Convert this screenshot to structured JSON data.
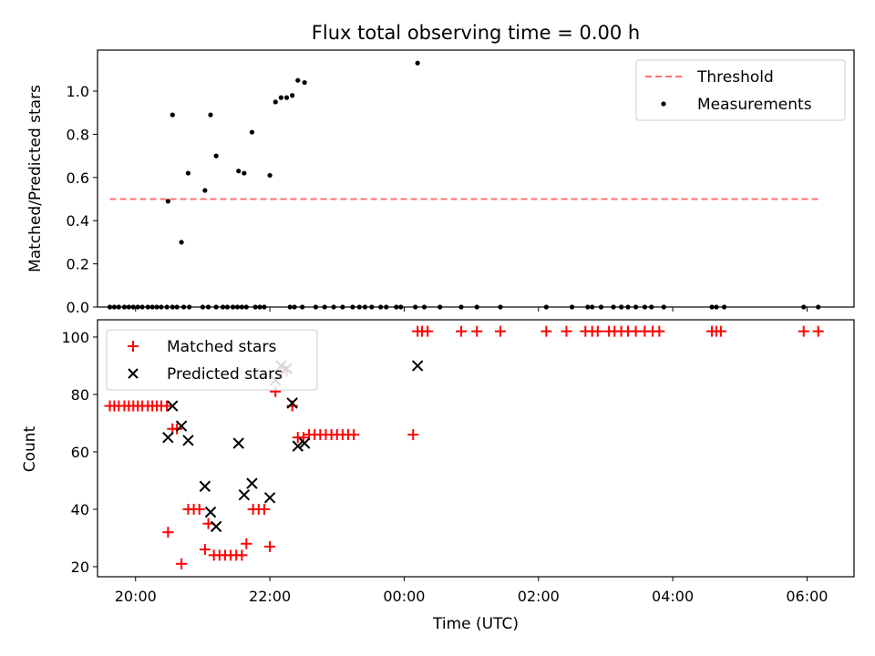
{
  "title": "Flux total observing time = 0.00 h",
  "colors": {
    "threshold": "#ff7070",
    "measurement": "#000000",
    "matched": "#ff0000",
    "predicted": "#000000"
  },
  "chart_data": [
    {
      "type": "scatter",
      "ylabel": "Matched/Predicted stars",
      "xlim": [
        "19:26",
        "06:42"
      ],
      "ylim": [
        0,
        1.19
      ],
      "yticks": [
        0.0,
        0.2,
        0.4,
        0.6,
        0.8,
        1.0
      ],
      "ytick_labels": [
        "0.0",
        "0.2",
        "0.4",
        "0.6",
        "0.8",
        "1.0"
      ],
      "legend": {
        "placement": "top-right",
        "entries": [
          "Threshold",
          "Measurements"
        ]
      },
      "threshold": {
        "name": "Threshold",
        "y": 0.5,
        "x_range": [
          "19:37",
          "06:10"
        ]
      },
      "series": [
        {
          "name": "Measurements",
          "points": [
            [
              "19:37",
              0
            ],
            [
              "19:41",
              0
            ],
            [
              "19:45",
              0
            ],
            [
              "19:50",
              0
            ],
            [
              "19:54",
              0
            ],
            [
              "19:58",
              0
            ],
            [
              "20:02",
              0
            ],
            [
              "20:06",
              0
            ],
            [
              "20:11",
              0
            ],
            [
              "20:15",
              0
            ],
            [
              "20:19",
              0
            ],
            [
              "20:23",
              0
            ],
            [
              "20:28",
              0
            ],
            [
              "20:33",
              0
            ],
            [
              "20:37",
              0
            ],
            [
              "20:43",
              0
            ],
            [
              "20:48",
              0
            ],
            [
              "21:00",
              0
            ],
            [
              "21:05",
              0
            ],
            [
              "21:12",
              0
            ],
            [
              "21:18",
              0
            ],
            [
              "21:22",
              0
            ],
            [
              "21:27",
              0
            ],
            [
              "21:31",
              0
            ],
            [
              "21:35",
              0
            ],
            [
              "21:39",
              0
            ],
            [
              "21:47",
              0
            ],
            [
              "21:51",
              0
            ],
            [
              "21:55",
              0
            ],
            [
              "22:18",
              0
            ],
            [
              "22:22",
              0
            ],
            [
              "22:29",
              0
            ],
            [
              "22:41",
              0
            ],
            [
              "22:49",
              0
            ],
            [
              "22:57",
              0
            ],
            [
              "23:05",
              0
            ],
            [
              "23:14",
              0
            ],
            [
              "23:20",
              0
            ],
            [
              "23:25",
              0
            ],
            [
              "23:31",
              0
            ],
            [
              "23:39",
              0
            ],
            [
              "23:44",
              0
            ],
            [
              "23:53",
              0
            ],
            [
              "23:57",
              0
            ],
            [
              "00:10",
              0
            ],
            [
              "00:18",
              0
            ],
            [
              "00:32",
              0
            ],
            [
              "00:51",
              0
            ],
            [
              "01:05",
              0
            ],
            [
              "01:26",
              0
            ],
            [
              "02:07",
              0
            ],
            [
              "02:30",
              0
            ],
            [
              "02:44",
              0
            ],
            [
              "02:48",
              0
            ],
            [
              "02:56",
              0
            ],
            [
              "03:07",
              0
            ],
            [
              "03:14",
              0
            ],
            [
              "03:20",
              0
            ],
            [
              "03:27",
              0
            ],
            [
              "03:35",
              0
            ],
            [
              "03:41",
              0
            ],
            [
              "03:52",
              0
            ],
            [
              "04:35",
              0
            ],
            [
              "04:39",
              0
            ],
            [
              "04:46",
              0
            ],
            [
              "05:57",
              0
            ],
            [
              "06:10",
              0
            ],
            [
              "20:29",
              0.49
            ],
            [
              "20:33",
              0.89
            ],
            [
              "20:41",
              0.3
            ],
            [
              "20:47",
              0.62
            ],
            [
              "21:02",
              0.54
            ],
            [
              "21:07",
              0.89
            ],
            [
              "21:12",
              0.7
            ],
            [
              "21:32",
              0.63
            ],
            [
              "21:37",
              0.62
            ],
            [
              "21:44",
              0.81
            ],
            [
              "22:00",
              0.61
            ],
            [
              "22:05",
              0.95
            ],
            [
              "22:10",
              0.97
            ],
            [
              "22:15",
              0.97
            ],
            [
              "22:20",
              0.98
            ],
            [
              "22:25",
              1.05
            ],
            [
              "22:31",
              1.04
            ],
            [
              "00:12",
              1.13
            ]
          ]
        }
      ]
    },
    {
      "type": "scatter",
      "xlabel": "Time (UTC)",
      "ylabel": "Count",
      "xlim": [
        "19:26",
        "06:42"
      ],
      "ylim": [
        16.5,
        106
      ],
      "yticks": [
        20,
        40,
        60,
        80,
        100
      ],
      "ytick_labels": [
        "20",
        "40",
        "60",
        "80",
        "100"
      ],
      "xticks": [
        "20:00",
        "22:00",
        "00:00",
        "02:00",
        "04:00",
        "06:00"
      ],
      "xtick_labels": [
        "20:00",
        "22:00",
        "00:00",
        "02:00",
        "04:00",
        "06:00"
      ],
      "legend": {
        "placement": "top-left",
        "entries": [
          "Matched stars",
          "Predicted stars"
        ]
      },
      "series": [
        {
          "name": "Matched stars",
          "marker": "plus",
          "points": [
            [
              "19:37",
              76
            ],
            [
              "19:41",
              76
            ],
            [
              "19:45",
              76
            ],
            [
              "19:50",
              76
            ],
            [
              "19:54",
              76
            ],
            [
              "19:58",
              76
            ],
            [
              "20:02",
              76
            ],
            [
              "20:06",
              76
            ],
            [
              "20:11",
              76
            ],
            [
              "20:15",
              76
            ],
            [
              "20:19",
              76
            ],
            [
              "20:23",
              76
            ],
            [
              "20:28",
              76
            ],
            [
              "20:29",
              32
            ],
            [
              "20:33",
              68
            ],
            [
              "20:37",
              68
            ],
            [
              "20:41",
              21
            ],
            [
              "20:47",
              40
            ],
            [
              "20:52",
              40
            ],
            [
              "20:57",
              40
            ],
            [
              "21:02",
              26
            ],
            [
              "21:05",
              35
            ],
            [
              "21:10",
              24
            ],
            [
              "21:15",
              24
            ],
            [
              "21:20",
              24
            ],
            [
              "21:25",
              24
            ],
            [
              "21:30",
              24
            ],
            [
              "21:35",
              24
            ],
            [
              "21:39",
              28
            ],
            [
              "21:45",
              40
            ],
            [
              "21:50",
              40
            ],
            [
              "21:55",
              40
            ],
            [
              "22:00",
              27
            ],
            [
              "22:05",
              81
            ],
            [
              "22:10",
              88
            ],
            [
              "22:15",
              88
            ],
            [
              "22:20",
              76
            ],
            [
              "22:25",
              65
            ],
            [
              "22:30",
              65
            ],
            [
              "22:35",
              66
            ],
            [
              "22:40",
              66
            ],
            [
              "22:45",
              66
            ],
            [
              "22:50",
              66
            ],
            [
              "22:55",
              66
            ],
            [
              "23:00",
              66
            ],
            [
              "23:05",
              66
            ],
            [
              "23:10",
              66
            ],
            [
              "23:15",
              66
            ],
            [
              "00:08",
              66
            ],
            [
              "00:12",
              102
            ],
            [
              "00:16",
              102
            ],
            [
              "00:21",
              102
            ],
            [
              "00:51",
              102
            ],
            [
              "01:05",
              102
            ],
            [
              "01:26",
              102
            ],
            [
              "02:07",
              102
            ],
            [
              "02:25",
              102
            ],
            [
              "02:42",
              102
            ],
            [
              "02:48",
              102
            ],
            [
              "02:53",
              102
            ],
            [
              "03:03",
              102
            ],
            [
              "03:08",
              102
            ],
            [
              "03:14",
              102
            ],
            [
              "03:20",
              102
            ],
            [
              "03:27",
              102
            ],
            [
              "03:35",
              102
            ],
            [
              "03:42",
              102
            ],
            [
              "03:48",
              102
            ],
            [
              "04:35",
              102
            ],
            [
              "04:39",
              102
            ],
            [
              "04:43",
              102
            ],
            [
              "05:57",
              102
            ],
            [
              "06:10",
              102
            ]
          ]
        },
        {
          "name": "Predicted stars",
          "marker": "x",
          "points": [
            [
              "20:29",
              65
            ],
            [
              "20:33",
              76
            ],
            [
              "20:41",
              69
            ],
            [
              "20:47",
              64
            ],
            [
              "21:02",
              48
            ],
            [
              "21:07",
              39
            ],
            [
              "21:12",
              34
            ],
            [
              "21:32",
              63
            ],
            [
              "21:37",
              45
            ],
            [
              "21:44",
              49
            ],
            [
              "22:00",
              44
            ],
            [
              "22:05",
              85
            ],
            [
              "22:10",
              90
            ],
            [
              "22:15",
              89
            ],
            [
              "22:20",
              77
            ],
            [
              "22:25",
              62
            ],
            [
              "22:31",
              63
            ],
            [
              "00:12",
              90
            ]
          ]
        }
      ]
    }
  ]
}
